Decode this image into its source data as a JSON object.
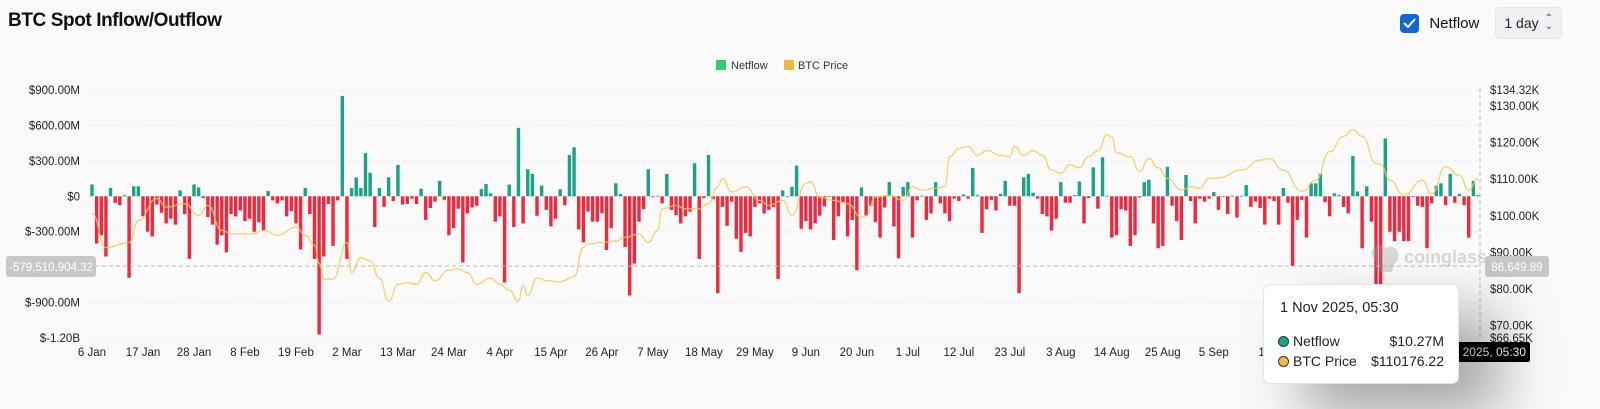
{
  "header": {
    "title": "BTC Spot Inflow/Outflow",
    "netflow_toggle": {
      "label": "Netflow",
      "checked": true
    },
    "interval_select": {
      "value": "1 day"
    }
  },
  "colors": {
    "inflow": "#1aa385",
    "outflow": "#f5263c",
    "price": "#f8c75e",
    "legend_netflow": "#2ecc71",
    "legend_price": "#f0b840",
    "checkbox": "#1565d8"
  },
  "watermark": "coinglass",
  "crosshair": {
    "left_value": "-579,510,904.32",
    "right_value": "86,649.89",
    "x_label": "1 Nov 2025, 05:30"
  },
  "tooltip": {
    "title": "1 Nov 2025, 05:30",
    "rows": [
      {
        "label": "Netflow",
        "value": "$10.27M",
        "color": "#1aa385"
      },
      {
        "label": "BTC Price",
        "value": "$110176.22",
        "color": "#f0b840"
      }
    ]
  },
  "chart_data": {
    "type": "bar+line",
    "legend": [
      "Netflow",
      "BTC Price"
    ],
    "legend_placement": "top-center",
    "grid": true,
    "xlim": [
      "2025-01-06",
      "2025-11-01"
    ],
    "x_interval": "1 day",
    "x_ticks": [
      "6 Jan",
      "17 Jan",
      "28 Jan",
      "8 Feb",
      "19 Feb",
      "2 Mar",
      "13 Mar",
      "24 Mar",
      "4 Apr",
      "15 Apr",
      "26 Apr",
      "7 May",
      "18 May",
      "29 May",
      "9 Jun",
      "20 Jun",
      "1 Jul",
      "12 Jul",
      "23 Jul",
      "3 Aug",
      "14 Aug",
      "25 Aug",
      "5 Sep",
      "16"
    ],
    "left_axis": {
      "unit": "USD millions",
      "ylim": [
        -1200,
        900
      ],
      "ticks": [
        900,
        600,
        300,
        0,
        -300,
        -900,
        -1200
      ],
      "tick_labels": [
        "$900.00M",
        "$600.00M",
        "$300.00M",
        "$0",
        "$-300.00M",
        "$-900.00M",
        "$-1.20B"
      ]
    },
    "right_axis": {
      "unit": "USD thousands",
      "ylim": [
        66.65,
        134.32
      ],
      "ticks": [
        134.32,
        130,
        120,
        110,
        100,
        90,
        80,
        70,
        66.65
      ],
      "tick_labels": [
        "$134.32K",
        "$130.00K",
        "$120.00K",
        "$110.00K",
        "$100.00K",
        "$90.00K",
        "$80.00K",
        "$70.00K",
        "$66.65K"
      ]
    },
    "netflow_series": {
      "name": "Netflow",
      "values": [
        100,
        -400,
        -330,
        -510,
        70,
        -55,
        -75,
        10,
        -690,
        85,
        85,
        -170,
        -300,
        -340,
        -70,
        -140,
        -230,
        -190,
        -240,
        50,
        -150,
        -530,
        100,
        75,
        -15,
        -175,
        -240,
        -410,
        -330,
        -475,
        -150,
        -170,
        -120,
        -210,
        -190,
        -300,
        -220,
        -290,
        45,
        -35,
        -60,
        -35,
        -170,
        -125,
        -230,
        -450,
        70,
        -150,
        -530,
        -1170,
        -510,
        -65,
        -420,
        -35,
        850,
        -530,
        70,
        160,
        70,
        365,
        200,
        -260,
        70,
        -90,
        160,
        -40,
        265,
        -70,
        -65,
        -20,
        -65,
        65,
        -200,
        -100,
        -45,
        130,
        -30,
        -330,
        -270,
        -105,
        -560,
        -145,
        -95,
        -80,
        60,
        105,
        25,
        -215,
        -170,
        -730,
        100,
        -260,
        580,
        -230,
        230,
        190,
        -165,
        90,
        -115,
        -255,
        -190,
        60,
        -75,
        350,
        415,
        -280,
        -390,
        -130,
        -215,
        -215,
        -145,
        -455,
        -270,
        110,
        20,
        -430,
        -840,
        -570,
        -215,
        -110,
        230,
        -5,
        5,
        -60,
        190,
        -115,
        -160,
        -230,
        -170,
        -130,
        280,
        -530,
        -15,
        350,
        -25,
        -820,
        -90,
        -250,
        -45,
        -360,
        -470,
        -310,
        -340,
        -90,
        -60,
        -145,
        -115,
        -90,
        -700,
        50,
        0,
        80,
        260,
        -275,
        -210,
        -280,
        -230,
        -165,
        -85,
        0,
        -370,
        -170,
        -50,
        -340,
        -200,
        -625,
        75,
        -165,
        -80,
        -220,
        -350,
        -95,
        120,
        -255,
        -525,
        80,
        120,
        -350,
        -35,
        5,
        -200,
        -145,
        120,
        -60,
        -145,
        -210,
        -20,
        -40,
        15,
        -20,
        240,
        10,
        -310,
        -110,
        -30,
        -120,
        20,
        130,
        -80,
        -80,
        -820,
        160,
        190,
        30,
        -20,
        -150,
        -170,
        -290,
        -190,
        120,
        -55,
        -55,
        10,
        125,
        -230,
        -15,
        245,
        -105,
        330,
        5,
        -350,
        -330,
        -110,
        -120,
        -420,
        -330,
        -10,
        120,
        140,
        -230,
        -440,
        -420,
        250,
        -80,
        -210,
        -370,
        180,
        -40,
        -230,
        -20,
        -45,
        -20,
        35,
        -115,
        -5,
        -150,
        5,
        -180,
        5,
        95,
        -90,
        -45,
        -100,
        -240,
        -20,
        -40,
        -240,
        70,
        -55,
        -590,
        -200,
        -30,
        -350,
        110,
        110,
        190,
        -50,
        -170,
        25,
        10,
        -90,
        -145,
        340,
        40,
        -440,
        85,
        -215,
        -1100,
        -1100,
        490,
        -300,
        -380,
        -300,
        -380,
        -380,
        -5,
        -80,
        -90,
        -440,
        -60,
        90,
        110,
        -75,
        190,
        -55,
        20,
        -75,
        -350,
        130,
        10.27
      ]
    },
    "price_series": {
      "name": "BTC Price",
      "points": [
        [
          "2025-01-06",
          100.6
        ],
        [
          "2025-01-09",
          91.3
        ],
        [
          "2025-01-14",
          92.7
        ],
        [
          "2025-01-16",
          98.7
        ],
        [
          "2025-01-20",
          104.7
        ],
        [
          "2025-01-22",
          102.4
        ],
        [
          "2025-01-26",
          103.3
        ],
        [
          "2025-01-29",
          100.1
        ],
        [
          "2025-01-31",
          102.8
        ],
        [
          "2025-02-03",
          96
        ],
        [
          "2025-02-05",
          95.1
        ],
        [
          "2025-02-10",
          95.1
        ],
        [
          "2025-02-12",
          96
        ],
        [
          "2025-02-15",
          94.7
        ],
        [
          "2025-02-19",
          96.9
        ],
        [
          "2025-02-21",
          94.7
        ],
        [
          "2025-02-23",
          92
        ],
        [
          "2025-02-24",
          87
        ],
        [
          "2025-02-25",
          82.7
        ],
        [
          "2025-02-27",
          82.7
        ],
        [
          "2025-03-02",
          92.7
        ],
        [
          "2025-03-03",
          84.5
        ],
        [
          "2025-03-05",
          88.6
        ],
        [
          "2025-03-07",
          87.7
        ],
        [
          "2025-03-09",
          83
        ],
        [
          "2025-03-11",
          76.7
        ],
        [
          "2025-03-13",
          81.3
        ],
        [
          "2025-03-15",
          81.7
        ],
        [
          "2025-03-17",
          81.3
        ],
        [
          "2025-03-19",
          84.5
        ],
        [
          "2025-03-21",
          82.3
        ],
        [
          "2025-03-24",
          85.2
        ],
        [
          "2025-03-26",
          85.5
        ],
        [
          "2025-03-28",
          84.5
        ],
        [
          "2025-03-30",
          81.3
        ],
        [
          "2025-04-02",
          83
        ],
        [
          "2025-04-04",
          81.3
        ],
        [
          "2025-04-06",
          79.7
        ],
        [
          "2025-04-08",
          76.7
        ],
        [
          "2025-04-09",
          81
        ],
        [
          "2025-04-10",
          78.3
        ],
        [
          "2025-04-12",
          83
        ],
        [
          "2025-04-14",
          82.3
        ],
        [
          "2025-04-17",
          82
        ],
        [
          "2025-04-20",
          83.4
        ],
        [
          "2025-04-22",
          91.4
        ],
        [
          "2025-04-23",
          92.3
        ],
        [
          "2025-04-26",
          92.7
        ],
        [
          "2025-04-29",
          93.1
        ],
        [
          "2025-05-01",
          94.1
        ],
        [
          "2025-05-04",
          95
        ],
        [
          "2025-05-06",
          92.7
        ],
        [
          "2025-05-08",
          96
        ],
        [
          "2025-05-09",
          101.9
        ],
        [
          "2025-05-12",
          102.8
        ],
        [
          "2025-05-14",
          101.9
        ],
        [
          "2025-05-17",
          101.9
        ],
        [
          "2025-05-19",
          103.3
        ],
        [
          "2025-05-21",
          107.9
        ],
        [
          "2025-05-22",
          110.2
        ],
        [
          "2025-05-24",
          106.5
        ],
        [
          "2025-05-27",
          107.9
        ],
        [
          "2025-05-30",
          104.2
        ],
        [
          "2025-06-01",
          102.8
        ],
        [
          "2025-06-04",
          104.2
        ],
        [
          "2025-06-06",
          100.1
        ],
        [
          "2025-06-09",
          108.8
        ],
        [
          "2025-06-10",
          109.3
        ],
        [
          "2025-06-12",
          105.1
        ],
        [
          "2025-06-15",
          104.2
        ],
        [
          "2025-06-18",
          103.3
        ],
        [
          "2025-06-21",
          99.6
        ],
        [
          "2025-06-22",
          100
        ],
        [
          "2025-06-24",
          105.1
        ],
        [
          "2025-06-27",
          105.6
        ],
        [
          "2025-06-30",
          104.2
        ],
        [
          "2025-07-02",
          107.9
        ],
        [
          "2025-07-04",
          107
        ],
        [
          "2025-07-07",
          107.5
        ],
        [
          "2025-07-09",
          107.9
        ],
        [
          "2025-07-10",
          116.1
        ],
        [
          "2025-07-12",
          118.4
        ],
        [
          "2025-07-14",
          118.9
        ],
        [
          "2025-07-16",
          116.5
        ],
        [
          "2025-07-18",
          117.8
        ],
        [
          "2025-07-21",
          116.5
        ],
        [
          "2025-07-23",
          116.1
        ],
        [
          "2025-07-24",
          118.9
        ],
        [
          "2025-07-26",
          116.5
        ],
        [
          "2025-07-28",
          117.8
        ],
        [
          "2025-07-30",
          116.5
        ],
        [
          "2025-08-01",
          112.5
        ],
        [
          "2025-08-03",
          111.6
        ],
        [
          "2025-08-05",
          114
        ],
        [
          "2025-08-07",
          113.1
        ],
        [
          "2025-08-09",
          116.1
        ],
        [
          "2025-08-11",
          117.8
        ],
        [
          "2025-08-13",
          122.1
        ],
        [
          "2025-08-14",
          121.5
        ],
        [
          "2025-08-15",
          117.2
        ],
        [
          "2025-08-18",
          116.1
        ],
        [
          "2025-08-20",
          112.1
        ],
        [
          "2025-08-22",
          115.6
        ],
        [
          "2025-08-24",
          113.1
        ],
        [
          "2025-08-26",
          110.2
        ],
        [
          "2025-08-29",
          107
        ],
        [
          "2025-08-31",
          107.9
        ],
        [
          "2025-09-02",
          107.5
        ],
        [
          "2025-09-04",
          110.2
        ],
        [
          "2025-09-06",
          110.3
        ],
        [
          "2025-09-11",
          112.5
        ],
        [
          "2025-09-15",
          115.2
        ],
        [
          "2025-09-17",
          115.6
        ],
        [
          "2025-09-20",
          112.5
        ],
        [
          "2025-09-24",
          106.6
        ],
        [
          "2025-09-27",
          109.7
        ],
        [
          "2025-09-30",
          117.5
        ],
        [
          "2025-10-03",
          121.7
        ],
        [
          "2025-10-05",
          123.5
        ],
        [
          "2025-10-07",
          121.7
        ],
        [
          "2025-10-10",
          114.3
        ],
        [
          "2025-10-11",
          114
        ],
        [
          "2025-10-13",
          109.7
        ],
        [
          "2025-10-16",
          105.6
        ],
        [
          "2025-10-20",
          109.7
        ],
        [
          "2025-10-22",
          106
        ],
        [
          "2025-10-25",
          113.4
        ],
        [
          "2025-10-28",
          111
        ],
        [
          "2025-10-30",
          107
        ],
        [
          "2025-11-01",
          110.18
        ]
      ]
    }
  }
}
